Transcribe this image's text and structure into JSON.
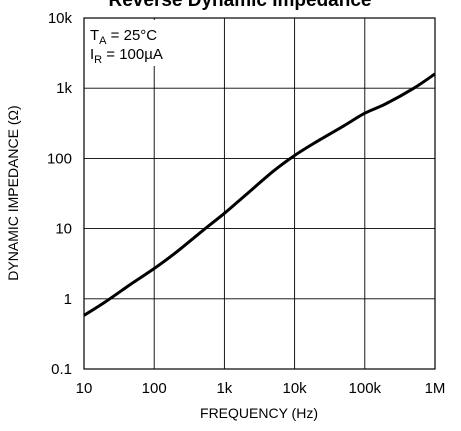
{
  "chart_data": {
    "type": "line",
    "title": "Reverse Dynamic Impedance",
    "xlabel": "FREQUENCY (Hz)",
    "ylabel": "DYNAMIC IMPEDANCE (Ω)",
    "x_scale": "log",
    "y_scale": "log",
    "xlim": [
      10,
      1000000
    ],
    "ylim": [
      0.1,
      10000
    ],
    "grid": true,
    "x_ticks": [
      {
        "value": 10,
        "label": "10"
      },
      {
        "value": 100,
        "label": "100"
      },
      {
        "value": 1000,
        "label": "1k"
      },
      {
        "value": 10000,
        "label": "10k"
      },
      {
        "value": 100000,
        "label": "100k"
      },
      {
        "value": 1000000,
        "label": "1M"
      }
    ],
    "y_ticks": [
      {
        "value": 0.1,
        "label": "0.1"
      },
      {
        "value": 1,
        "label": "1"
      },
      {
        "value": 10,
        "label": "10"
      },
      {
        "value": 100,
        "label": "100"
      },
      {
        "value": 1000,
        "label": "1k"
      },
      {
        "value": 10000,
        "label": "10k"
      }
    ],
    "annotation": {
      "line1": {
        "main": "T",
        "sub": "A",
        "rest": " = 25°C"
      },
      "line2": {
        "main": "I",
        "sub": "R",
        "rest": " = 100µA"
      }
    },
    "series": [
      {
        "x": [
          10,
          20,
          50,
          100,
          200,
          500,
          1000,
          2000,
          5000,
          10000,
          20000,
          50000,
          100000,
          200000,
          500000,
          1000000
        ],
        "y": [
          0.58,
          0.9,
          1.7,
          2.7,
          4.5,
          9.5,
          16.5,
          30,
          66,
          110,
          170,
          290,
          440,
          600,
          1000,
          1600
        ]
      }
    ]
  }
}
